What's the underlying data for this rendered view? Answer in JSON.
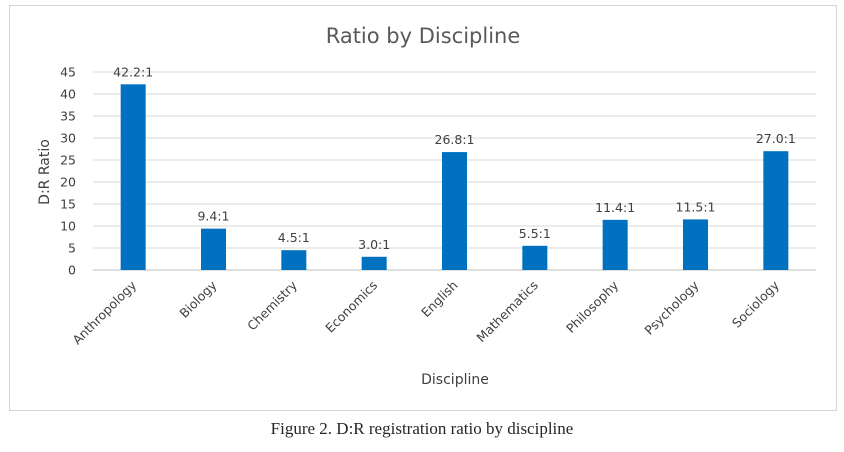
{
  "chart_data": {
    "type": "bar",
    "title": "Ratio by Discipline",
    "xlabel": "Discipline",
    "ylabel": "D:R Ratio",
    "categories": [
      "Anthropology",
      "Biology",
      "Chemistry",
      "Economics",
      "English",
      "Mathematics",
      "Philosophy",
      "Psychology",
      "Sociology"
    ],
    "values": [
      42.2,
      9.4,
      4.5,
      3.0,
      26.8,
      5.5,
      11.4,
      11.5,
      27.0
    ],
    "data_labels": [
      "42.2:1",
      "9.4:1",
      "4.5:1",
      "3.0:1",
      "26.8:1",
      "5.5:1",
      "11.4:1",
      "11.5:1",
      "27.0:1"
    ],
    "ylim": [
      0,
      45
    ],
    "yticks": [
      0,
      5,
      10,
      15,
      20,
      25,
      30,
      35,
      40,
      45
    ],
    "grid": true,
    "legend": "none",
    "bar_color": "#0070c0"
  },
  "caption": "Figure 2. D:R registration ratio by discipline"
}
